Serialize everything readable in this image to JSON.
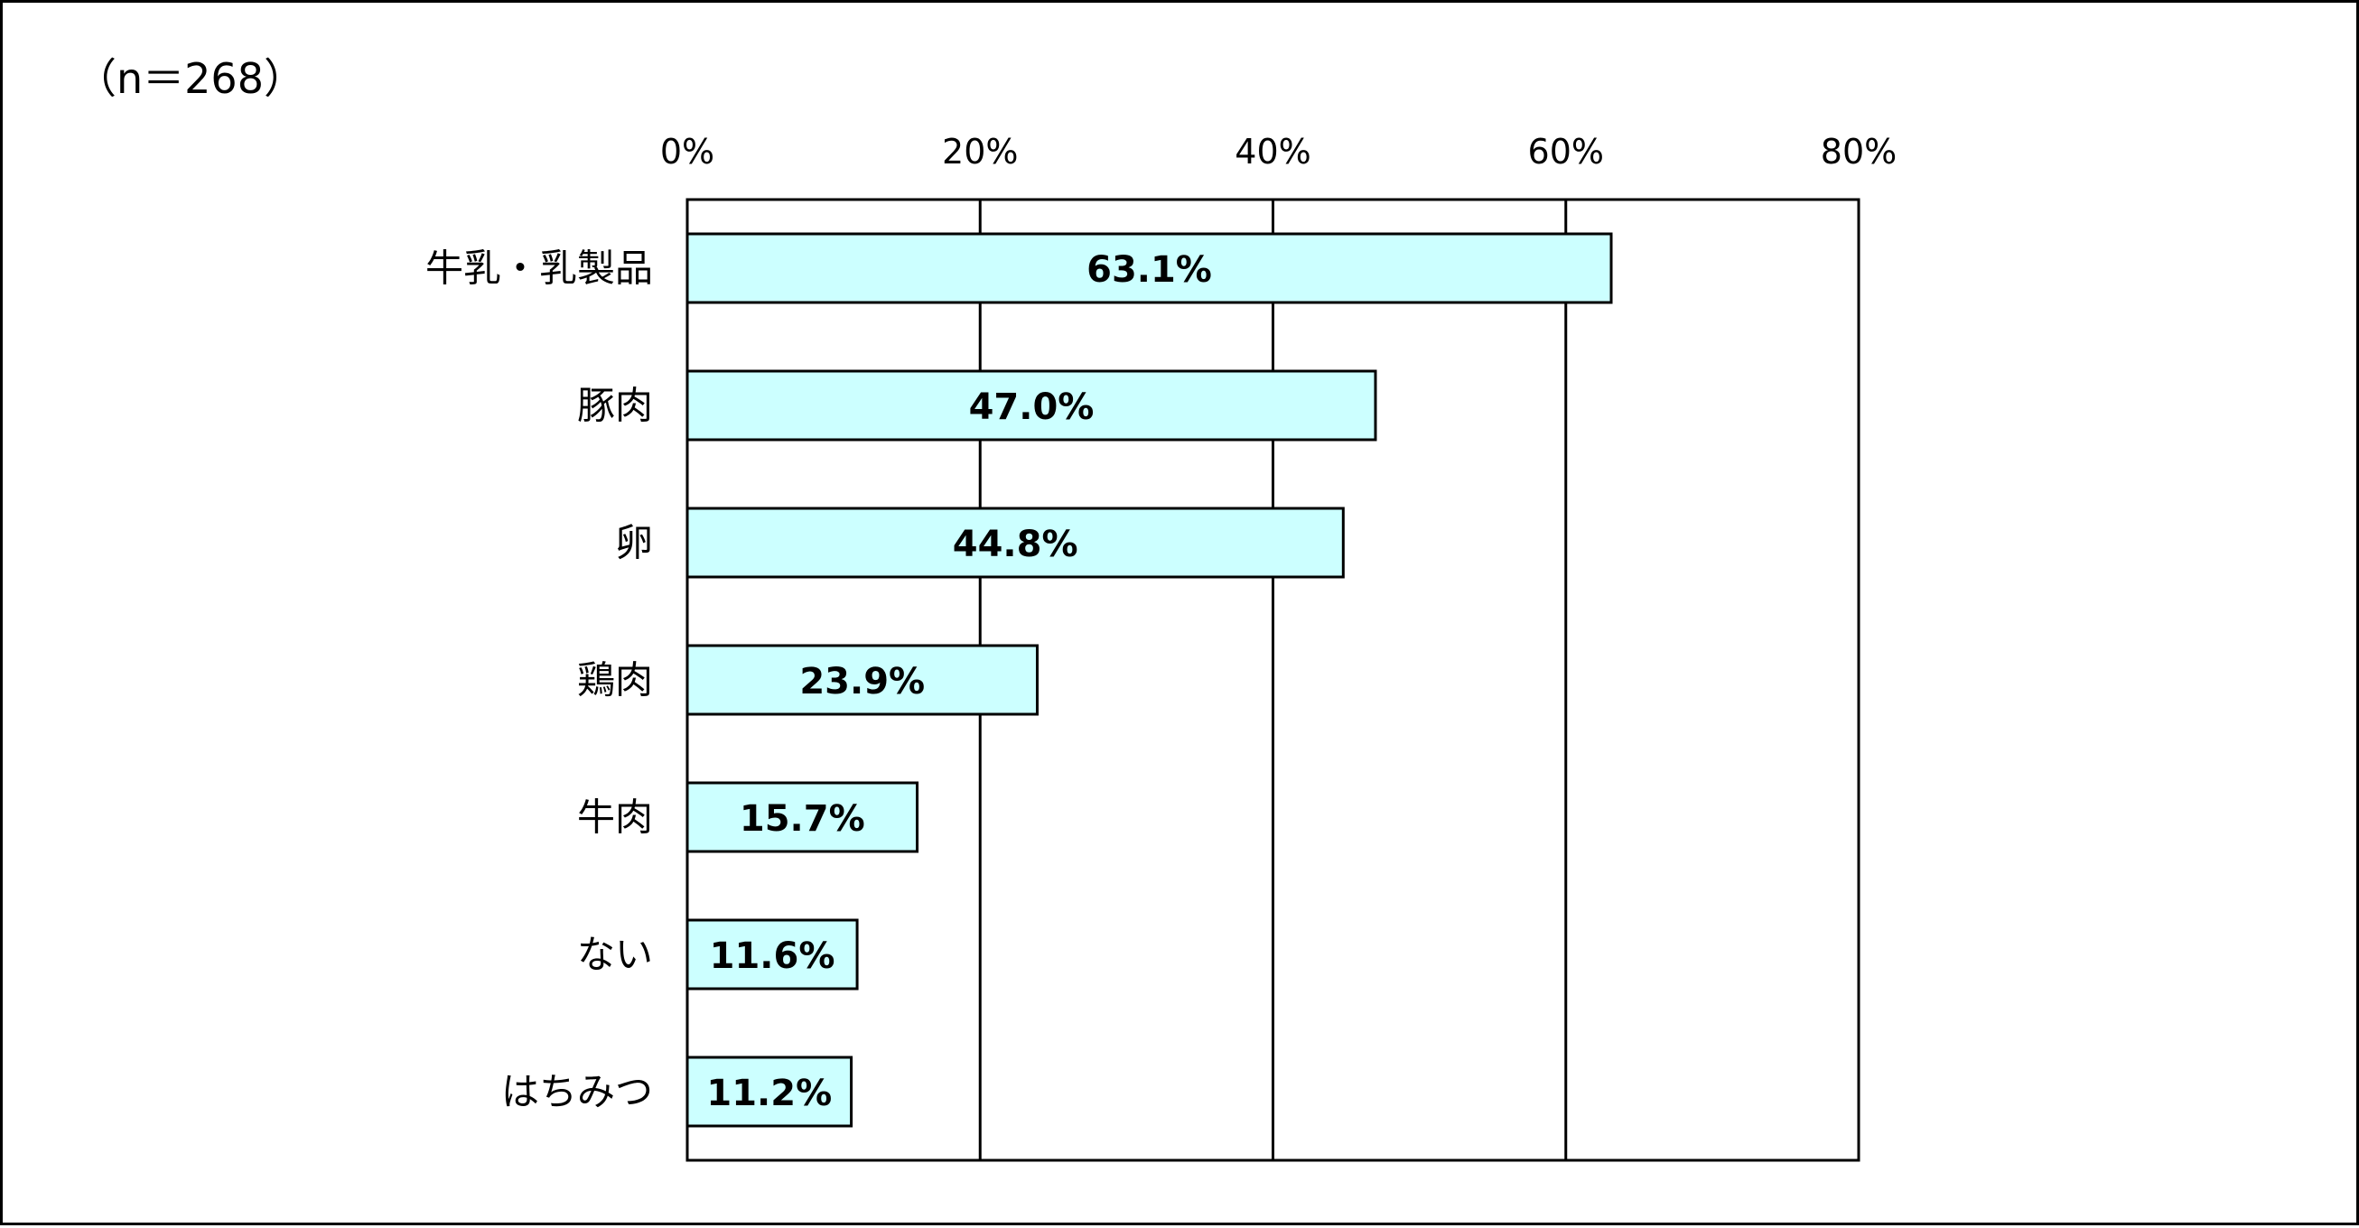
{
  "note": "（n＝268）",
  "chart_data": {
    "type": "bar",
    "orientation": "horizontal",
    "categories": [
      "牛乳・乳製品",
      "豚肉",
      "卵",
      "鶏肉",
      "牛肉",
      "ない",
      "はちみつ"
    ],
    "values": [
      63.1,
      47.0,
      44.8,
      23.9,
      15.7,
      11.6,
      11.2
    ],
    "data_labels": [
      "63.1%",
      "47.0%",
      "44.8%",
      "23.9%",
      "15.7%",
      "11.6%",
      "11.2%"
    ],
    "xticks": [
      "0%",
      "20%",
      "40%",
      "60%",
      "80%"
    ],
    "xlim": [
      0,
      80
    ],
    "x_axis_position": "top",
    "grid": true,
    "bar_color": "#CCFFFF",
    "bar_edge_color": "#000000"
  }
}
